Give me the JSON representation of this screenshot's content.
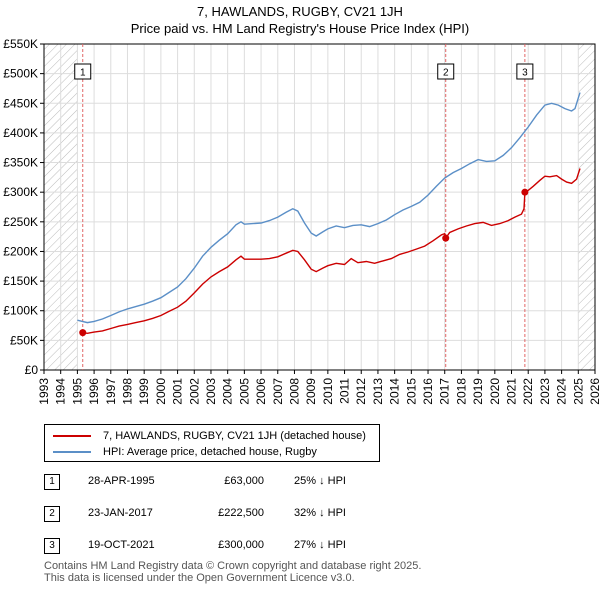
{
  "header": {
    "title_line1": "7, HAWLANDS, RUGBY, CV21 1JH",
    "title_line2": "Price paid vs. HM Land Registry's House Price Index (HPI)"
  },
  "legend": {
    "price_paid_label": "7, HAWLANDS, RUGBY, CV21 1JH (detached house)",
    "hpi_label": "HPI: Average price, detached house, Rugby"
  },
  "colors": {
    "price_paid": "#cc0000",
    "hpi": "#5b8fc7",
    "marker_line": "#e06666",
    "hatch": "#bbbbbb",
    "grid": "#dddddd"
  },
  "chart_data": {
    "type": "line",
    "xlim": [
      1993,
      2026
    ],
    "ylim": [
      0,
      550000
    ],
    "y_ticks": [
      {
        "value": 0,
        "label": "£0"
      },
      {
        "value": 50000,
        "label": "£50K"
      },
      {
        "value": 100000,
        "label": "£100K"
      },
      {
        "value": 150000,
        "label": "£150K"
      },
      {
        "value": 200000,
        "label": "£200K"
      },
      {
        "value": 250000,
        "label": "£250K"
      },
      {
        "value": 300000,
        "label": "£300K"
      },
      {
        "value": 350000,
        "label": "£350K"
      },
      {
        "value": 400000,
        "label": "£400K"
      },
      {
        "value": 450000,
        "label": "£450K"
      },
      {
        "value": 500000,
        "label": "£500K"
      },
      {
        "value": 550000,
        "label": "£550K"
      }
    ],
    "x_ticks": [
      "1993",
      "1994",
      "1995",
      "1996",
      "1997",
      "1998",
      "1999",
      "2000",
      "2001",
      "2002",
      "2003",
      "2004",
      "2005",
      "2006",
      "2007",
      "2008",
      "2009",
      "2010",
      "2011",
      "2012",
      "2013",
      "2014",
      "2015",
      "2016",
      "2017",
      "2018",
      "2019",
      "2020",
      "2021",
      "2022",
      "2023",
      "2024",
      "2025",
      "2026"
    ],
    "hatch_before": 1995.0,
    "hatch_after": 2025.0,
    "series": [
      {
        "name": "7, HAWLANDS, RUGBY, CV21 1JH (detached house)",
        "points": [
          [
            1995.32,
            63000
          ],
          [
            1995.6,
            62000
          ],
          [
            1996.0,
            64000
          ],
          [
            1996.5,
            66000
          ],
          [
            1997.0,
            70000
          ],
          [
            1997.5,
            74000
          ],
          [
            1998.0,
            77000
          ],
          [
            1998.5,
            80000
          ],
          [
            1999.0,
            83000
          ],
          [
            1999.5,
            87000
          ],
          [
            2000.0,
            92000
          ],
          [
            2000.5,
            99000
          ],
          [
            2001.0,
            106000
          ],
          [
            2001.5,
            116000
          ],
          [
            2002.0,
            130000
          ],
          [
            2002.5,
            145000
          ],
          [
            2003.0,
            157000
          ],
          [
            2003.5,
            166000
          ],
          [
            2004.0,
            174000
          ],
          [
            2004.5,
            186000
          ],
          [
            2004.8,
            192000
          ],
          [
            2005.0,
            187000
          ],
          [
            2005.5,
            187000
          ],
          [
            2006.0,
            187000
          ],
          [
            2006.5,
            188000
          ],
          [
            2007.0,
            191000
          ],
          [
            2007.5,
            197000
          ],
          [
            2007.9,
            202000
          ],
          [
            2008.2,
            200000
          ],
          [
            2008.6,
            186000
          ],
          [
            2009.0,
            170000
          ],
          [
            2009.3,
            166000
          ],
          [
            2009.7,
            172000
          ],
          [
            2010.0,
            176000
          ],
          [
            2010.5,
            180000
          ],
          [
            2011.0,
            178000
          ],
          [
            2011.4,
            188000
          ],
          [
            2011.8,
            181000
          ],
          [
            2012.3,
            183000
          ],
          [
            2012.8,
            180000
          ],
          [
            2013.3,
            184000
          ],
          [
            2013.8,
            188000
          ],
          [
            2014.3,
            195000
          ],
          [
            2014.8,
            199000
          ],
          [
            2015.3,
            204000
          ],
          [
            2015.8,
            209000
          ],
          [
            2016.3,
            218000
          ],
          [
            2016.8,
            228000
          ],
          [
            2017.0,
            230000
          ],
          [
            2017.06,
            222500
          ],
          [
            2017.3,
            232000
          ],
          [
            2017.8,
            238000
          ],
          [
            2018.3,
            243000
          ],
          [
            2018.8,
            247000
          ],
          [
            2019.3,
            249000
          ],
          [
            2019.8,
            244000
          ],
          [
            2020.3,
            247000
          ],
          [
            2020.8,
            252000
          ],
          [
            2021.2,
            258000
          ],
          [
            2021.6,
            263000
          ],
          [
            2021.75,
            272000
          ],
          [
            2021.8,
            300000
          ],
          [
            2022.0,
            303000
          ],
          [
            2022.3,
            310000
          ],
          [
            2022.7,
            320000
          ],
          [
            2023.0,
            327000
          ],
          [
            2023.3,
            326000
          ],
          [
            2023.7,
            328000
          ],
          [
            2024.0,
            322000
          ],
          [
            2024.3,
            317000
          ],
          [
            2024.6,
            315000
          ],
          [
            2024.9,
            322000
          ],
          [
            2025.1,
            340000
          ]
        ]
      },
      {
        "name": "HPI: Average price, detached house, Rugby",
        "points": [
          [
            1995.0,
            84000
          ],
          [
            1995.3,
            82000
          ],
          [
            1995.6,
            80000
          ],
          [
            1996.0,
            82000
          ],
          [
            1996.5,
            86000
          ],
          [
            1997.0,
            92000
          ],
          [
            1997.5,
            98000
          ],
          [
            1998.0,
            103000
          ],
          [
            1998.5,
            107000
          ],
          [
            1999.0,
            111000
          ],
          [
            1999.5,
            116000
          ],
          [
            2000.0,
            122000
          ],
          [
            2000.5,
            131000
          ],
          [
            2001.0,
            140000
          ],
          [
            2001.5,
            154000
          ],
          [
            2002.0,
            172000
          ],
          [
            2002.5,
            192000
          ],
          [
            2003.0,
            207000
          ],
          [
            2003.5,
            219000
          ],
          [
            2004.0,
            230000
          ],
          [
            2004.5,
            245000
          ],
          [
            2004.8,
            250000
          ],
          [
            2005.0,
            246000
          ],
          [
            2005.5,
            247000
          ],
          [
            2006.0,
            248000
          ],
          [
            2006.5,
            252000
          ],
          [
            2007.0,
            258000
          ],
          [
            2007.5,
            266000
          ],
          [
            2007.9,
            272000
          ],
          [
            2008.2,
            268000
          ],
          [
            2008.6,
            248000
          ],
          [
            2009.0,
            231000
          ],
          [
            2009.3,
            226000
          ],
          [
            2009.7,
            233000
          ],
          [
            2010.0,
            238000
          ],
          [
            2010.5,
            243000
          ],
          [
            2011.0,
            240000
          ],
          [
            2011.5,
            244000
          ],
          [
            2012.0,
            245000
          ],
          [
            2012.5,
            242000
          ],
          [
            2013.0,
            247000
          ],
          [
            2013.5,
            253000
          ],
          [
            2014.0,
            262000
          ],
          [
            2014.5,
            270000
          ],
          [
            2015.0,
            276000
          ],
          [
            2015.5,
            283000
          ],
          [
            2016.0,
            295000
          ],
          [
            2016.5,
            310000
          ],
          [
            2017.0,
            324000
          ],
          [
            2017.5,
            333000
          ],
          [
            2018.0,
            340000
          ],
          [
            2018.5,
            348000
          ],
          [
            2019.0,
            355000
          ],
          [
            2019.5,
            352000
          ],
          [
            2020.0,
            353000
          ],
          [
            2020.5,
            362000
          ],
          [
            2021.0,
            375000
          ],
          [
            2021.5,
            392000
          ],
          [
            2022.0,
            410000
          ],
          [
            2022.5,
            430000
          ],
          [
            2023.0,
            447000
          ],
          [
            2023.4,
            450000
          ],
          [
            2023.8,
            447000
          ],
          [
            2024.2,
            441000
          ],
          [
            2024.6,
            437000
          ],
          [
            2024.8,
            441000
          ],
          [
            2025.1,
            468000
          ]
        ]
      }
    ],
    "transactions": [
      {
        "id": "1",
        "x": 1995.32,
        "price": 63000
      },
      {
        "id": "2",
        "x": 2017.06,
        "price": 222500
      },
      {
        "id": "3",
        "x": 2021.8,
        "price": 300000
      }
    ]
  },
  "table": {
    "rows": [
      {
        "id": "1",
        "date": "28-APR-1995",
        "price": "£63,000",
        "hpi": "25% ↓ HPI"
      },
      {
        "id": "2",
        "date": "23-JAN-2017",
        "price": "£222,500",
        "hpi": "32% ↓ HPI"
      },
      {
        "id": "3",
        "date": "19-OCT-2021",
        "price": "£300,000",
        "hpi": "27% ↓ HPI"
      }
    ]
  },
  "footer": {
    "line1": "Contains HM Land Registry data © Crown copyright and database right 2025.",
    "line2": "This data is licensed under the Open Government Licence v3.0."
  }
}
